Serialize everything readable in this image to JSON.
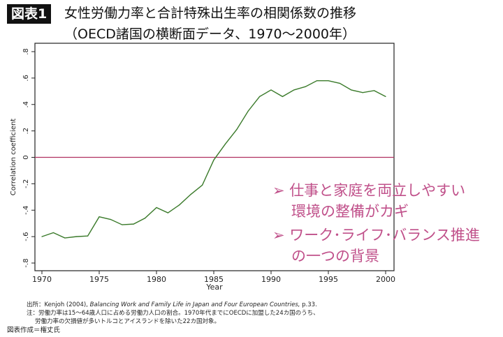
{
  "header": {
    "badge": "図表1",
    "title_line1": "女性労働力率と合計特殊出生率の相関係数の推移",
    "title_line2": "（OECD諸国の横断面データ、1970〜2000年）"
  },
  "chart_data": {
    "type": "line",
    "xlabel": "Year",
    "ylabel": "Correlation coefficient",
    "xlim": [
      1970,
      2000
    ],
    "ylim": [
      -0.8,
      0.8
    ],
    "x_ticks": [
      "1970",
      "1975",
      "1980",
      "1985",
      "1990",
      "1995",
      "2000"
    ],
    "y_ticks": [
      ".8",
      ".6",
      ".4",
      ".2",
      "0",
      "-.2",
      "-.4",
      "-.6",
      "-.8"
    ],
    "x": [
      1970,
      1971,
      1972,
      1973,
      1974,
      1975,
      1976,
      1977,
      1978,
      1979,
      1980,
      1981,
      1982,
      1983,
      1984,
      1985,
      1986,
      1987,
      1988,
      1989,
      1990,
      1991,
      1992,
      1993,
      1994,
      1995,
      1996,
      1997,
      1998,
      1999,
      2000
    ],
    "values": [
      -0.6,
      -0.57,
      -0.61,
      -0.6,
      -0.595,
      -0.45,
      -0.47,
      -0.51,
      -0.505,
      -0.46,
      -0.38,
      -0.42,
      -0.36,
      -0.28,
      -0.21,
      -0.02,
      0.1,
      0.21,
      0.35,
      0.46,
      0.51,
      0.46,
      0.51,
      0.535,
      0.58,
      0.58,
      0.56,
      0.51,
      0.49,
      0.505,
      0.46
    ],
    "reference_line": 0,
    "colors": {
      "line": "#3a7a2a",
      "reference": "#b03060",
      "annotation": "#c0508a"
    },
    "grid": false
  },
  "annotations": {
    "bullet": "➢",
    "item1_line1": "仕事と家庭を両立しやすい",
    "item1_line2": "環境の整備がカギ",
    "item2_line1": "ワーク･ライフ･バランス推進",
    "item2_line2": "の一つの背景"
  },
  "footer": {
    "source_prefix": "出所：Kenjoh (2004),",
    "source_title": "Balancing Work and Family Life in Japan and Four European Countries,",
    "source_suffix": "p.33.",
    "note_line1": "注：労働力率は15〜64歳人口に占める労働力人口の割合。1970年代までにOECDに加盟した24カ国のうち、",
    "note_line2": "労働力率の欠損値が多いトルコとアイスランドを除いた22カ国対象。",
    "credit": "図表作成＝権丈氏"
  }
}
